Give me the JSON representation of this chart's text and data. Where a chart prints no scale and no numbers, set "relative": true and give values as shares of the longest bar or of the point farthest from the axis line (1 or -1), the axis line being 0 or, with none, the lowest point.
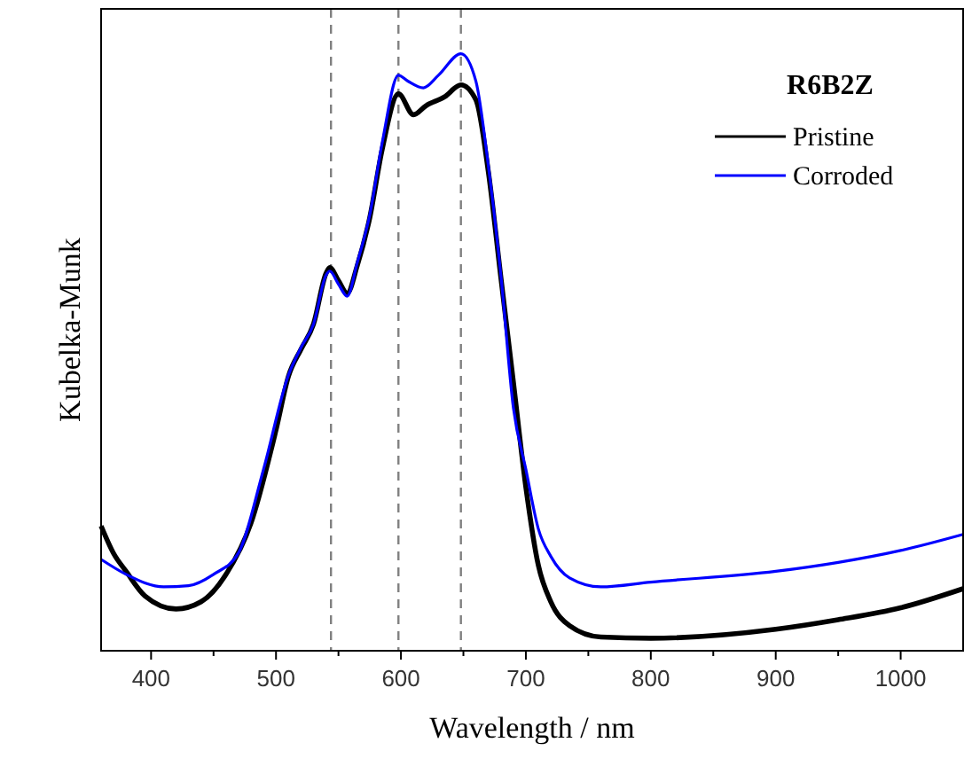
{
  "chart_data": {
    "type": "line",
    "xlabel": "Wavelength / nm",
    "ylabel": "Kubelka-Munk",
    "legend_title": "R6B2Z",
    "relative": true,
    "legend": "top right",
    "line_style": "solid",
    "grid": false,
    "xlim": [
      360,
      1050
    ],
    "xticks": [
      400,
      500,
      600,
      700,
      800,
      900,
      1000
    ],
    "ref_lines": [
      {
        "axis": "x",
        "value": 544,
        "color": "#808080",
        "line_style": "dashed"
      },
      {
        "axis": "x",
        "value": 598,
        "color": "#808080",
        "line_style": "dashed"
      },
      {
        "axis": "x",
        "value": 648,
        "color": "#808080",
        "line_style": "dashed"
      }
    ],
    "series": [
      {
        "name": "Pristine",
        "color": "#000000",
        "x": [
          360,
          370,
          380,
          395,
          420,
          440,
          460,
          480,
          500,
          510,
          520,
          530,
          540,
          543,
          550,
          557,
          565,
          575,
          585,
          598,
          610,
          620,
          635,
          648,
          660,
          670,
          680,
          690,
          700,
          710,
          720,
          735,
          760,
          800,
          900,
          950,
          1000,
          1050
        ],
        "values": [
          0.209,
          0.163,
          0.133,
          0.092,
          0.07,
          0.082,
          0.128,
          0.214,
          0.37,
          0.46,
          0.505,
          0.547,
          0.632,
          0.642,
          0.62,
          0.599,
          0.645,
          0.725,
          0.84,
          0.933,
          0.898,
          0.913,
          0.928,
          0.948,
          0.923,
          0.802,
          0.625,
          0.45,
          0.274,
          0.143,
          0.082,
          0.042,
          0.023,
          0.021,
          0.036,
          0.052,
          0.072,
          0.104
        ]
      },
      {
        "name": "Corroded",
        "color": "#0000ff",
        "x": [
          360,
          380,
          410,
          430,
          450,
          470,
          490,
          510,
          520,
          530,
          540,
          543,
          550,
          557,
          565,
          575,
          585,
          598,
          605,
          618,
          630,
          648,
          660,
          670,
          680,
          690,
          700,
          710,
          720,
          735,
          760,
          800,
          900,
          950,
          1000,
          1050
        ],
        "values": [
          0.153,
          0.128,
          0.107,
          0.109,
          0.128,
          0.164,
          0.304,
          0.462,
          0.508,
          0.547,
          0.629,
          0.636,
          0.614,
          0.594,
          0.65,
          0.73,
          0.851,
          0.964,
          0.955,
          0.943,
          0.964,
          1,
          0.954,
          0.812,
          0.629,
          0.407,
          0.304,
          0.204,
          0.158,
          0.122,
          0.107,
          0.115,
          0.133,
          0.148,
          0.168,
          0.195
        ]
      }
    ]
  }
}
